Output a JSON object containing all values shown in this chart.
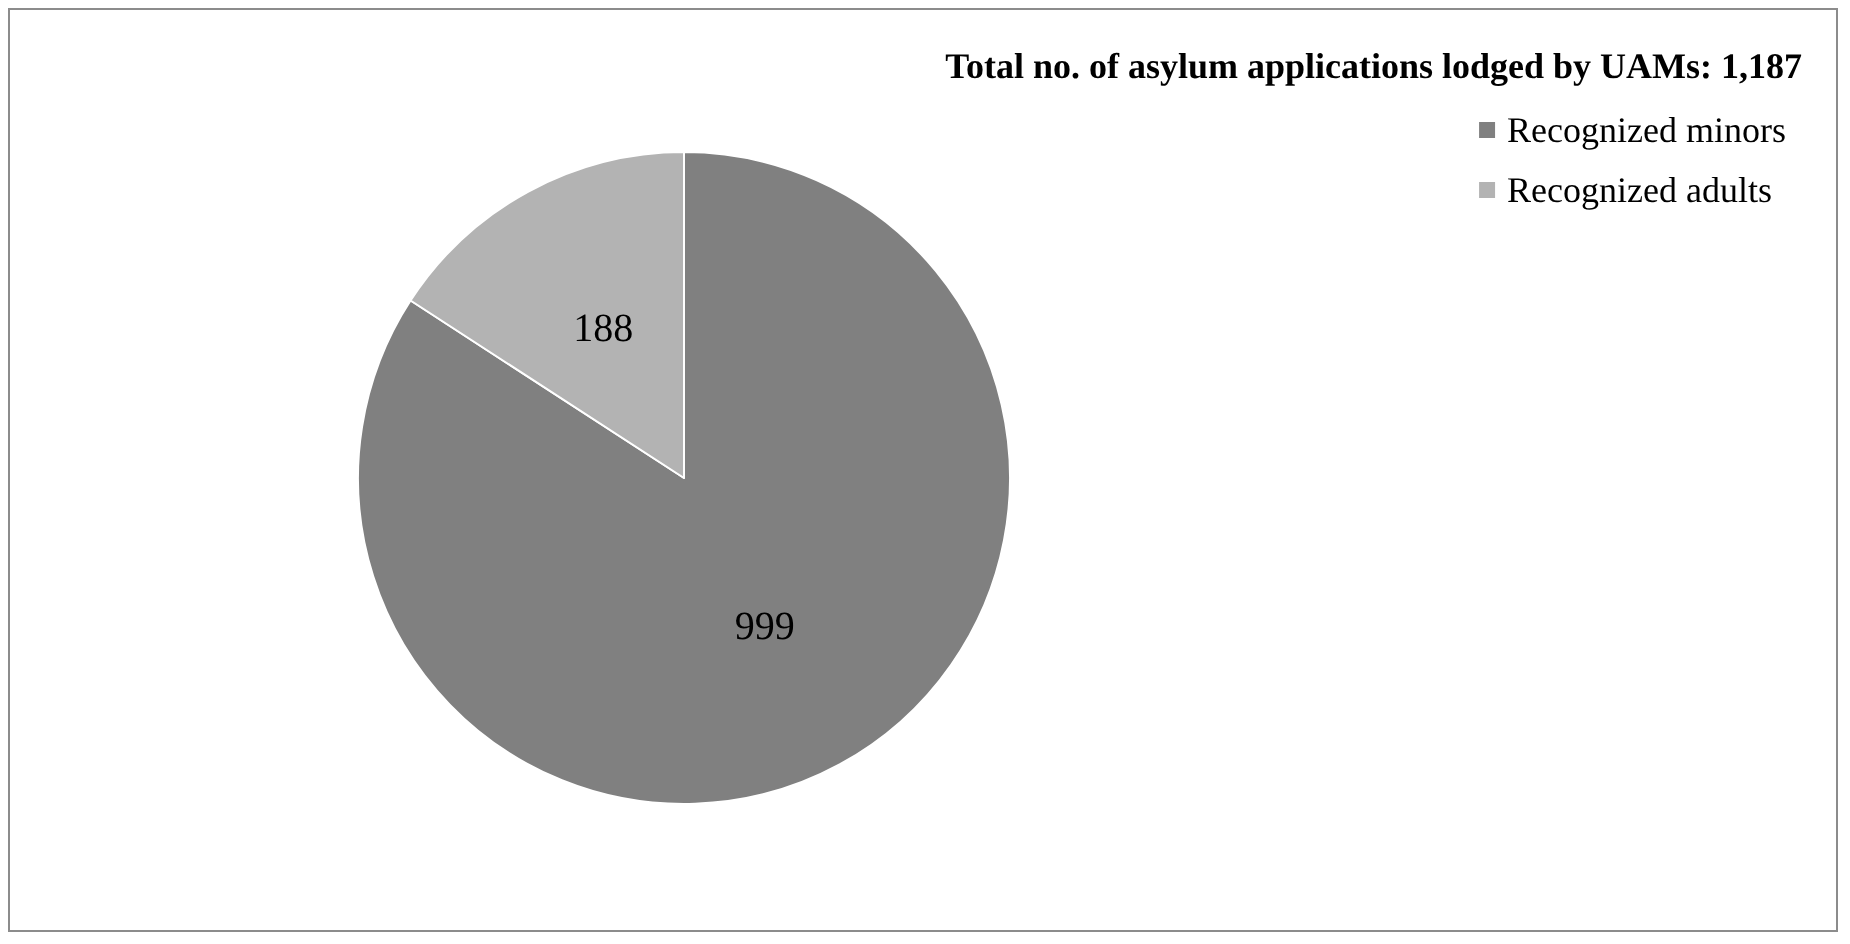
{
  "chart_data": {
    "type": "pie",
    "title": "Total no. of asylum applications lodged by UAMs: 1,187",
    "categories": [
      "Recognized minors",
      "Recognized adults"
    ],
    "values": [
      999,
      188
    ],
    "colors": [
      "#808080",
      "#b3b3b3"
    ],
    "data_labels": true,
    "legend": "top right"
  }
}
